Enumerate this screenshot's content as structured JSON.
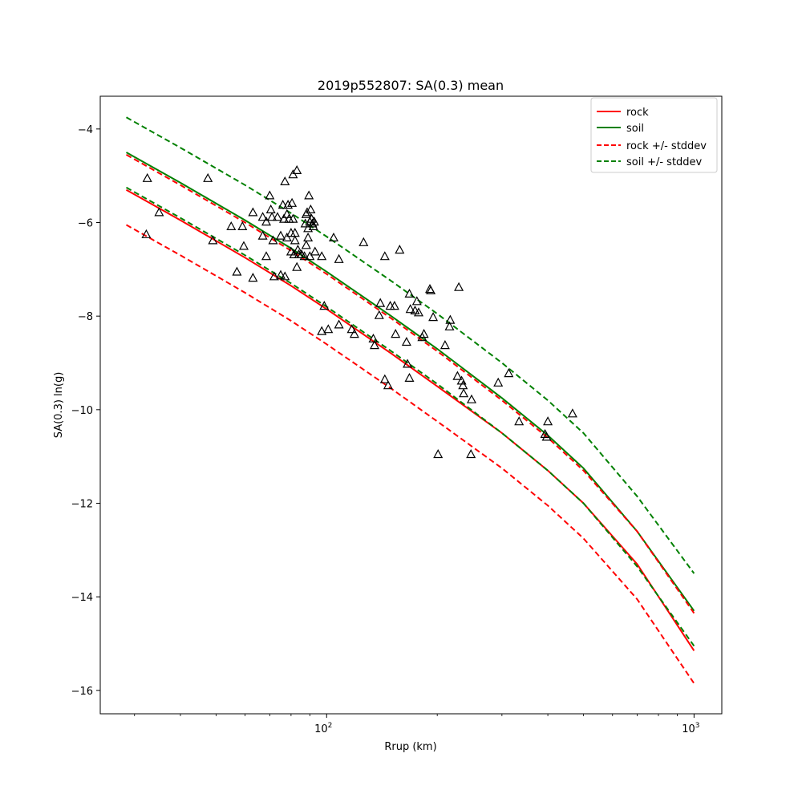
{
  "chart_data": {
    "type": "line",
    "title": "2019p552807: SA(0.3) mean",
    "xlabel": "Rrup (km)",
    "ylabel": "SA(0.3) ln(g)",
    "xscale": "log",
    "xlim": [
      24.2,
      1190
    ],
    "ylim": [
      -16.5,
      -3.3
    ],
    "grid": false,
    "legend_position": "top-right",
    "x_ticks": [
      {
        "value": 100,
        "base": "10",
        "exp": "2"
      },
      {
        "value": 1000,
        "base": "10",
        "exp": "3"
      }
    ],
    "y_ticks": [
      {
        "value": -4,
        "label": "−4"
      },
      {
        "value": -6,
        "label": "−6"
      },
      {
        "value": -8,
        "label": "−8"
      },
      {
        "value": -10,
        "label": "−10"
      },
      {
        "value": -12,
        "label": "−12"
      },
      {
        "value": -14,
        "label": "−14"
      },
      {
        "value": -16,
        "label": "−16"
      }
    ],
    "series": [
      {
        "name": "rock",
        "color": "#ff0000",
        "style": "solid",
        "x": [
          28.5,
          40,
          60,
          80,
          100,
          150,
          200,
          300,
          400,
          500,
          700,
          1000
        ],
        "y": [
          -5.3,
          -5.95,
          -6.75,
          -7.35,
          -7.85,
          -8.8,
          -9.5,
          -10.5,
          -11.3,
          -12.0,
          -13.3,
          -15.15
        ]
      },
      {
        "name": "soil",
        "color": "#008000",
        "style": "solid",
        "x": [
          28.5,
          40,
          60,
          80,
          100,
          150,
          200,
          300,
          400,
          500,
          700,
          1000
        ],
        "y": [
          -4.5,
          -5.15,
          -5.95,
          -6.55,
          -7.05,
          -8.0,
          -8.7,
          -9.75,
          -10.55,
          -11.25,
          -12.6,
          -14.3
        ]
      },
      {
        "name": "rock +/- stddev",
        "color": "#ff0000",
        "style": "dashed",
        "x": [
          28.5,
          40,
          60,
          80,
          100,
          150,
          200,
          300,
          400,
          500,
          700,
          1000
        ],
        "y": [
          -4.55,
          -5.2,
          -6.0,
          -6.6,
          -7.1,
          -8.05,
          -8.75,
          -9.8,
          -10.6,
          -11.3,
          -12.6,
          -14.35
        ]
      },
      {
        "name": "",
        "color": "#ff0000",
        "style": "dashed",
        "x": [
          28.5,
          40,
          60,
          80,
          100,
          150,
          200,
          300,
          400,
          500,
          700,
          1000
        ],
        "y": [
          -6.05,
          -6.7,
          -7.5,
          -8.1,
          -8.6,
          -9.55,
          -10.25,
          -11.25,
          -12.05,
          -12.75,
          -14.05,
          -15.85
        ]
      },
      {
        "name": "soil +/- stddev",
        "color": "#008000",
        "style": "dashed",
        "x": [
          28.5,
          40,
          60,
          80,
          100,
          150,
          200,
          300,
          400,
          500,
          700,
          1000
        ],
        "y": [
          -3.75,
          -4.4,
          -5.2,
          -5.8,
          -6.3,
          -7.25,
          -7.95,
          -9.0,
          -9.8,
          -10.5,
          -11.85,
          -13.5
        ]
      },
      {
        "name": "",
        "color": "#008000",
        "style": "dashed",
        "x": [
          28.5,
          40,
          60,
          80,
          100,
          150,
          200,
          300,
          400,
          500,
          700,
          1000
        ],
        "y": [
          -5.25,
          -5.9,
          -6.7,
          -7.3,
          -7.8,
          -8.75,
          -9.45,
          -10.5,
          -11.3,
          -12.0,
          -13.35,
          -15.05
        ]
      }
    ],
    "observations": {
      "marker": "triangle",
      "color": "#000000",
      "points": [
        {
          "x": 32.5,
          "y": -5.05
        },
        {
          "x": 32.3,
          "y": -6.25
        },
        {
          "x": 35.0,
          "y": -5.78
        },
        {
          "x": 47.5,
          "y": -5.05
        },
        {
          "x": 49.0,
          "y": -6.38
        },
        {
          "x": 55.0,
          "y": -6.08
        },
        {
          "x": 57.0,
          "y": -7.05
        },
        {
          "x": 59.0,
          "y": -6.08
        },
        {
          "x": 59.5,
          "y": -6.5
        },
        {
          "x": 63.0,
          "y": -5.78
        },
        {
          "x": 63.0,
          "y": -7.18
        },
        {
          "x": 67.0,
          "y": -5.88
        },
        {
          "x": 67.0,
          "y": -6.28
        },
        {
          "x": 68.5,
          "y": -6.72
        },
        {
          "x": 68.5,
          "y": -5.98
        },
        {
          "x": 70.0,
          "y": -5.42
        },
        {
          "x": 70.5,
          "y": -5.72
        },
        {
          "x": 71.0,
          "y": -5.88
        },
        {
          "x": 71.5,
          "y": -6.38
        },
        {
          "x": 72.0,
          "y": -7.15
        },
        {
          "x": 73.5,
          "y": -5.88
        },
        {
          "x": 75.0,
          "y": -6.28
        },
        {
          "x": 75.0,
          "y": -7.12
        },
        {
          "x": 76.0,
          "y": -5.62
        },
        {
          "x": 76.5,
          "y": -5.92
        },
        {
          "x": 77.0,
          "y": -5.12
        },
        {
          "x": 77.0,
          "y": -7.15
        },
        {
          "x": 78.0,
          "y": -5.82
        },
        {
          "x": 78.0,
          "y": -6.32
        },
        {
          "x": 78.5,
          "y": -5.62
        },
        {
          "x": 79.0,
          "y": -5.92
        },
        {
          "x": 80.0,
          "y": -6.62
        },
        {
          "x": 80.0,
          "y": -6.22
        },
        {
          "x": 80.5,
          "y": -5.58
        },
        {
          "x": 81.0,
          "y": -4.97
        },
        {
          "x": 81.0,
          "y": -5.92
        },
        {
          "x": 81.5,
          "y": -6.68
        },
        {
          "x": 82.0,
          "y": -6.38
        },
        {
          "x": 82.0,
          "y": -6.22
        },
        {
          "x": 83.0,
          "y": -4.88
        },
        {
          "x": 83.0,
          "y": -6.95
        },
        {
          "x": 83.5,
          "y": -6.58
        },
        {
          "x": 84.0,
          "y": -6.68
        },
        {
          "x": 85.5,
          "y": -6.68
        },
        {
          "x": 87.0,
          "y": -6.72
        },
        {
          "x": 87.5,
          "y": -6.02
        },
        {
          "x": 88.0,
          "y": -5.82
        },
        {
          "x": 88.0,
          "y": -6.48
        },
        {
          "x": 88.5,
          "y": -5.78
        },
        {
          "x": 89.0,
          "y": -6.12
        },
        {
          "x": 89.0,
          "y": -6.32
        },
        {
          "x": 89.5,
          "y": -5.42
        },
        {
          "x": 90.0,
          "y": -5.98
        },
        {
          "x": 90.0,
          "y": -6.72
        },
        {
          "x": 90.5,
          "y": -5.72
        },
        {
          "x": 91.0,
          "y": -5.92
        },
        {
          "x": 91.5,
          "y": -6.02
        },
        {
          "x": 92.0,
          "y": -6.08
        },
        {
          "x": 92.5,
          "y": -5.98
        },
        {
          "x": 93.0,
          "y": -6.62
        },
        {
          "x": 97.0,
          "y": -6.72
        },
        {
          "x": 97.0,
          "y": -8.32
        },
        {
          "x": 98.5,
          "y": -7.78
        },
        {
          "x": 101.0,
          "y": -8.28
        },
        {
          "x": 104.5,
          "y": -6.32
        },
        {
          "x": 108.0,
          "y": -6.78
        },
        {
          "x": 108.0,
          "y": -8.18
        },
        {
          "x": 117.0,
          "y": -8.28
        },
        {
          "x": 119.0,
          "y": -8.38
        },
        {
          "x": 126.0,
          "y": -6.42
        },
        {
          "x": 134.0,
          "y": -8.48
        },
        {
          "x": 135.0,
          "y": -8.62
        },
        {
          "x": 139.0,
          "y": -7.98
        },
        {
          "x": 140.0,
          "y": -7.72
        },
        {
          "x": 144.0,
          "y": -6.72
        },
        {
          "x": 144.0,
          "y": -9.35
        },
        {
          "x": 147.0,
          "y": -9.48
        },
        {
          "x": 149.0,
          "y": -7.78
        },
        {
          "x": 153.0,
          "y": -7.78
        },
        {
          "x": 154.0,
          "y": -8.38
        },
        {
          "x": 158.0,
          "y": -6.58
        },
        {
          "x": 165.0,
          "y": -8.55
        },
        {
          "x": 166.0,
          "y": -9.02
        },
        {
          "x": 168.0,
          "y": -9.32
        },
        {
          "x": 168.0,
          "y": -7.52
        },
        {
          "x": 169.0,
          "y": -7.85
        },
        {
          "x": 174.0,
          "y": -7.88
        },
        {
          "x": 176.0,
          "y": -7.68
        },
        {
          "x": 178.0,
          "y": -7.92
        },
        {
          "x": 182.0,
          "y": -8.45
        },
        {
          "x": 184.0,
          "y": -8.38
        },
        {
          "x": 191.0,
          "y": -7.42
        },
        {
          "x": 192.0,
          "y": -7.45
        },
        {
          "x": 195.0,
          "y": -8.02
        },
        {
          "x": 201.0,
          "y": -10.95
        },
        {
          "x": 210.0,
          "y": -8.62
        },
        {
          "x": 216.0,
          "y": -8.22
        },
        {
          "x": 217.0,
          "y": -8.08
        },
        {
          "x": 227.0,
          "y": -9.28
        },
        {
          "x": 229.0,
          "y": -7.38
        },
        {
          "x": 233.0,
          "y": -9.38
        },
        {
          "x": 235.0,
          "y": -9.48
        },
        {
          "x": 236.0,
          "y": -9.65
        },
        {
          "x": 247.0,
          "y": -10.95
        },
        {
          "x": 248.0,
          "y": -9.78
        },
        {
          "x": 293.0,
          "y": -9.42
        },
        {
          "x": 313.0,
          "y": -9.22
        },
        {
          "x": 334.0,
          "y": -10.25
        },
        {
          "x": 393.0,
          "y": -10.52
        },
        {
          "x": 397.0,
          "y": -10.58
        },
        {
          "x": 400.0,
          "y": -10.25
        },
        {
          "x": 467.0,
          "y": -10.08
        }
      ]
    }
  }
}
